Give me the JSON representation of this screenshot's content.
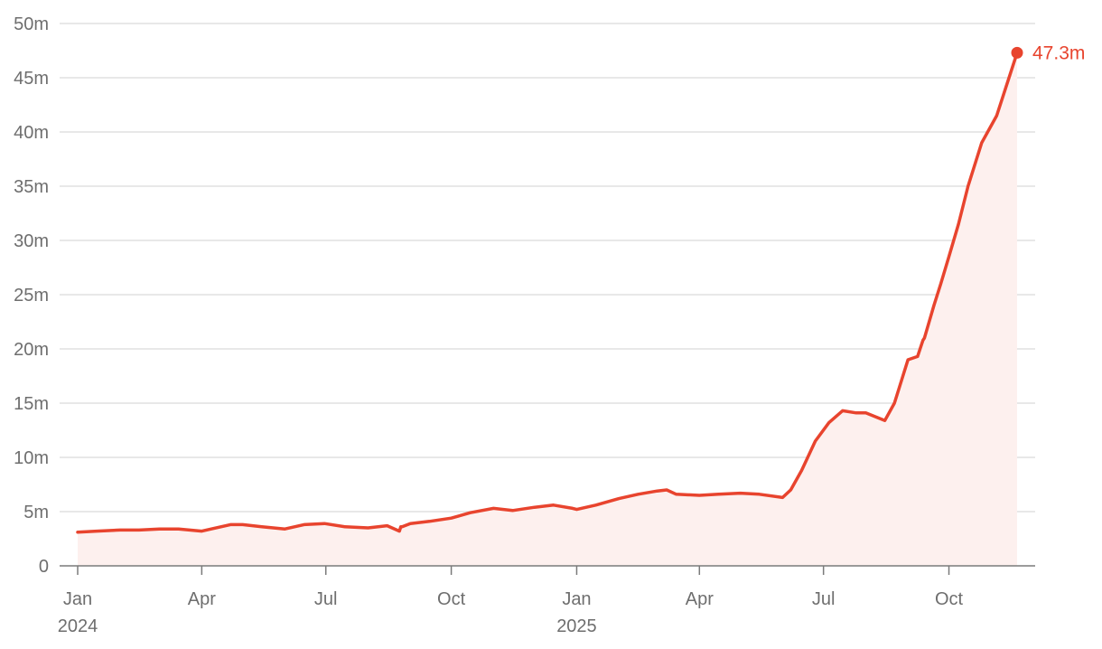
{
  "chart_data": {
    "type": "area",
    "title": "",
    "xlabel": "",
    "ylabel": "",
    "x_axis": {
      "type": "date",
      "range": [
        "2024-01-01",
        "2025-11-20"
      ],
      "ticks": [
        {
          "date": "2024-01-01",
          "label": "Jan",
          "sublabel": "2024"
        },
        {
          "date": "2024-04-01",
          "label": "Apr",
          "sublabel": ""
        },
        {
          "date": "2024-07-01",
          "label": "Jul",
          "sublabel": ""
        },
        {
          "date": "2024-10-01",
          "label": "Oct",
          "sublabel": ""
        },
        {
          "date": "2025-01-01",
          "label": "Jan",
          "sublabel": "2025"
        },
        {
          "date": "2025-04-01",
          "label": "Apr",
          "sublabel": ""
        },
        {
          "date": "2025-07-01",
          "label": "Jul",
          "sublabel": ""
        },
        {
          "date": "2025-10-01",
          "label": "Oct",
          "sublabel": ""
        }
      ]
    },
    "y_axis": {
      "ylim": [
        0,
        50
      ],
      "ticks": [
        0,
        5,
        10,
        15,
        20,
        25,
        30,
        35,
        40,
        45,
        50
      ],
      "tick_labels": [
        "0",
        "5m",
        "10m",
        "15m",
        "20m",
        "25m",
        "30m",
        "35m",
        "40m",
        "45m",
        "50m"
      ]
    },
    "grid": true,
    "legend": "none",
    "colors": {
      "line": "#e8442e",
      "fill": "#fdf0ee",
      "grid": "#e0e0e0",
      "axis": "#7a7a7a",
      "text": "#6e6e6e"
    },
    "end_label": "47.3m",
    "series": [
      {
        "x": [
          "2024-01-01",
          "2024-01-15",
          "2024-02-01",
          "2024-02-15",
          "2024-03-01",
          "2024-03-15",
          "2024-04-01",
          "2024-04-08",
          "2024-04-22",
          "2024-05-01",
          "2024-05-15",
          "2024-06-01",
          "2024-06-15",
          "2024-06-30",
          "2024-07-15",
          "2024-08-01",
          "2024-08-15",
          "2024-08-24",
          "2024-08-25",
          "2024-08-26",
          "2024-09-01",
          "2024-09-15",
          "2024-10-01",
          "2024-10-15",
          "2024-11-01",
          "2024-11-15",
          "2024-12-01",
          "2024-12-15",
          "2024-12-29",
          "2025-01-01",
          "2025-01-15",
          "2025-02-01",
          "2025-02-15",
          "2025-03-01",
          "2025-03-08",
          "2025-03-15",
          "2025-04-01",
          "2025-04-15",
          "2025-05-01",
          "2025-05-15",
          "2025-06-01",
          "2025-06-07",
          "2025-06-15",
          "2025-06-25",
          "2025-07-05",
          "2025-07-15",
          "2025-07-25",
          "2025-08-01",
          "2025-08-15",
          "2025-08-22",
          "2025-09-01",
          "2025-09-08",
          "2025-09-12",
          "2025-09-13",
          "2025-09-20",
          "2025-09-25",
          "2025-10-01",
          "2025-10-08",
          "2025-10-15",
          "2025-10-25",
          "2025-11-05",
          "2025-11-20"
        ],
        "y": [
          3.1,
          3.2,
          3.3,
          3.3,
          3.4,
          3.4,
          3.2,
          3.4,
          3.8,
          3.8,
          3.6,
          3.4,
          3.8,
          3.9,
          3.6,
          3.5,
          3.7,
          3.2,
          3.6,
          3.6,
          3.9,
          4.1,
          4.4,
          4.9,
          5.3,
          5.1,
          5.4,
          5.6,
          5.3,
          5.2,
          5.6,
          6.2,
          6.6,
          6.9,
          7.0,
          6.6,
          6.5,
          6.6,
          6.7,
          6.6,
          6.3,
          7.0,
          8.8,
          11.5,
          13.2,
          14.3,
          14.1,
          14.1,
          13.4,
          15.0,
          19.0,
          19.3,
          20.8,
          21.0,
          24.0,
          26.0,
          28.5,
          31.5,
          35.0,
          39.0,
          41.5,
          47.3
        ]
      }
    ]
  }
}
